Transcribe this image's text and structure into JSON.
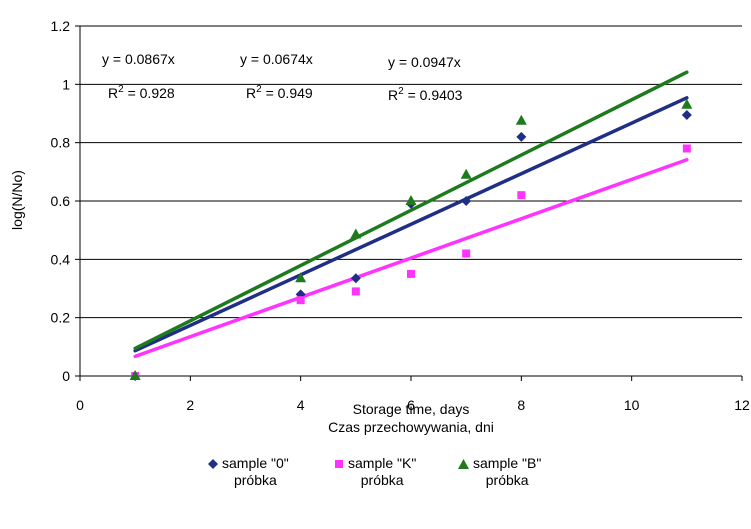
{
  "chart_data": {
    "type": "scatter",
    "xlabel_lines": [
      "Storage time, days",
      "Czas przechowywania, dni"
    ],
    "ylabel": "log(N/No)",
    "xlim": [
      0,
      12
    ],
    "ylim": [
      0,
      1.2
    ],
    "x_ticks": [
      0,
      2,
      4,
      6,
      8,
      10,
      12
    ],
    "y_ticks": [
      0,
      0.2,
      0.4,
      0.6,
      0.8,
      1,
      1.2
    ],
    "x_tick_labels": [
      "0",
      "2",
      "4",
      "6",
      "8",
      "10",
      "12"
    ],
    "y_tick_labels": [
      "0",
      "0.2",
      "0.4",
      "0.6",
      "0.8",
      "1",
      "1.2"
    ],
    "grid": "horizontal",
    "legend_position": "bottom",
    "series": [
      {
        "name_line1": "sample \"0\"",
        "name_line2": "próbka",
        "marker": "diamond",
        "color": "#1F2F86",
        "x": [
          1,
          4,
          5,
          6,
          7,
          8,
          11
        ],
        "y": [
          0.0,
          0.28,
          0.335,
          0.59,
          0.6,
          0.82,
          0.895
        ],
        "trendline": {
          "slope": 0.0867,
          "intercept": 0.0,
          "color": "#1F2F86",
          "equation": "y = 0.0867x",
          "r2_prefix": "R",
          "r2_value": " = 0.928"
        }
      },
      {
        "name_line1": "sample \"K\"",
        "name_line2": "próbka",
        "marker": "square",
        "color": "#FF33FF",
        "x": [
          1,
          4,
          5,
          6,
          7,
          8,
          11
        ],
        "y": [
          0.0,
          0.26,
          0.29,
          0.35,
          0.42,
          0.62,
          0.78
        ],
        "trendline": {
          "slope": 0.0674,
          "intercept": 0.0,
          "color": "#FF33FF",
          "equation": "y = 0.0674x",
          "r2_prefix": "R",
          "r2_value": " = 0.949"
        }
      },
      {
        "name_line1": "sample \"B\"",
        "name_line2": "próbka",
        "marker": "triangle",
        "color": "#1D7A1D",
        "x": [
          1,
          4,
          5,
          6,
          7,
          8,
          11
        ],
        "y": [
          0.0,
          0.335,
          0.485,
          0.6,
          0.69,
          0.875,
          0.93
        ],
        "trendline": {
          "slope": 0.0947,
          "intercept": 0.0,
          "color": "#1D7A1D",
          "equation": "y = 0.0947x",
          "r2_prefix": "R",
          "r2_value": " = 0.9403"
        }
      }
    ]
  }
}
